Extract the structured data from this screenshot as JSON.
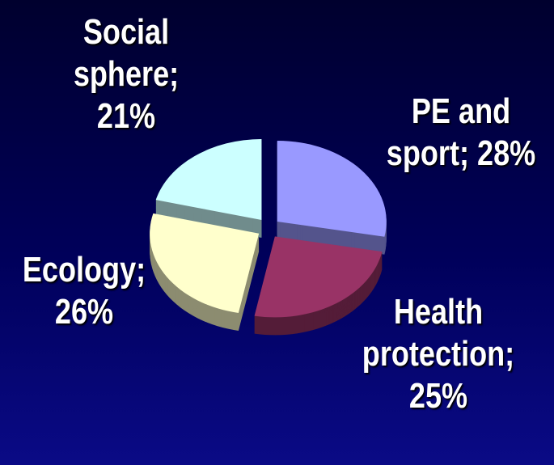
{
  "chart_data": {
    "type": "pie3d",
    "values": [
      28,
      25,
      26,
      21
    ],
    "value_labels": [
      "PE and sport; 28%",
      "Health protection; 25%",
      "Ecology; 26%",
      "Social sphere; 21%"
    ],
    "colors": [
      "#9999ff",
      "#993366",
      "#ffffcc",
      "#ccffff"
    ]
  }
}
